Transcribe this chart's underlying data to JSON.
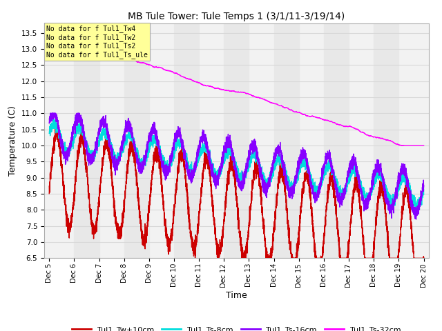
{
  "title": "MB Tule Tower: Tule Temps 1 (3/1/11-3/19/14)",
  "xlabel": "Time",
  "ylabel": "Temperature (C)",
  "xlim": [
    4.8,
    20.2
  ],
  "ylim": [
    6.5,
    13.8
  ],
  "yticks": [
    6.5,
    7.0,
    7.5,
    8.0,
    8.5,
    9.0,
    9.5,
    10.0,
    10.5,
    11.0,
    11.5,
    12.0,
    12.5,
    13.0,
    13.5
  ],
  "xtick_positions": [
    5,
    6,
    7,
    8,
    9,
    10,
    11,
    12,
    13,
    14,
    15,
    16,
    17,
    18,
    19,
    20
  ],
  "xtick_labels": [
    "Dec 5",
    "Dec 6",
    "Dec 7",
    "Dec 8",
    "Dec 9",
    "Dec 10",
    "Dec 11",
    "Dec 12",
    "Dec 13",
    "Dec 14",
    "Dec 15",
    "Dec 16",
    "Dec 17",
    "Dec 18",
    "Dec 19",
    "Dec 20"
  ],
  "series": {
    "Tw10cm": {
      "color": "#cc0000",
      "label": "Tul1_Tw+10cm",
      "lw": 1.0
    },
    "Ts8cm": {
      "color": "#00dddd",
      "label": "Tul1_Ts-8cm",
      "lw": 1.0
    },
    "Ts16cm": {
      "color": "#8800ff",
      "label": "Tul1_Ts-16cm",
      "lw": 1.0
    },
    "Ts32cm": {
      "color": "#ff00ff",
      "label": "Tul1_Ts-32cm",
      "lw": 1.0
    }
  },
  "annotations": [
    "No data for f Tul1_Tw4",
    "No data for f Tul1_Tw2",
    "No data for f Tul1_Ts2",
    "No data for f Tul1_Ts_ule"
  ],
  "annotation_box_color": "#ffff99",
  "annotation_box_edge": "#aaaaaa",
  "grid_color": "#d8d8d8",
  "plot_bg_color": "#f2f2f2",
  "band_color": "#e8e8e8",
  "figsize": [
    6.4,
    4.8
  ],
  "dpi": 100
}
